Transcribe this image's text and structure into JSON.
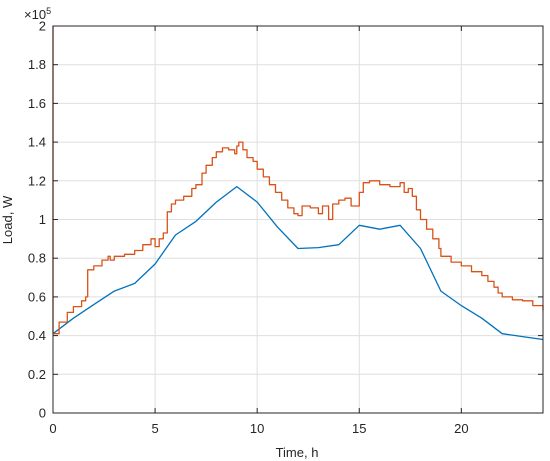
{
  "chart_data": {
    "type": "line",
    "xlabel": "Time, h",
    "ylabel": "Load, W",
    "y_exponent_base": "×10",
    "y_exponent_power": "5",
    "xlim": [
      0,
      24
    ],
    "ylim": [
      0,
      2
    ],
    "x_ticks": [
      0,
      5,
      10,
      15,
      20
    ],
    "x_tick_labels": [
      "0",
      "5",
      "10",
      "15",
      "20"
    ],
    "y_ticks": [
      0,
      0.2,
      0.4,
      0.6,
      0.8,
      1,
      1.2,
      1.4,
      1.6,
      1.8,
      2
    ],
    "y_tick_labels": [
      "0",
      "0.2",
      "0.4",
      "0.6",
      "0.8",
      "1",
      "1.2",
      "1.4",
      "1.6",
      "1.8",
      "2"
    ],
    "grid": true,
    "legend": "none",
    "series": [
      {
        "color": "#0072BD",
        "style": "linear",
        "points": [
          [
            0,
            0.41
          ],
          [
            1,
            0.49
          ],
          [
            2,
            0.56
          ],
          [
            3,
            0.63
          ],
          [
            4,
            0.67
          ],
          [
            5,
            0.77
          ],
          [
            6,
            0.92
          ],
          [
            7,
            0.99
          ],
          [
            8,
            1.09
          ],
          [
            9,
            1.17
          ],
          [
            10,
            1.09
          ],
          [
            11,
            0.96
          ],
          [
            12,
            0.85
          ],
          [
            13,
            0.855
          ],
          [
            14,
            0.87
          ],
          [
            15,
            0.97
          ],
          [
            16,
            0.95
          ],
          [
            17,
            0.97
          ],
          [
            18,
            0.85
          ],
          [
            19,
            0.63
          ],
          [
            20,
            0.555
          ],
          [
            21,
            0.49
          ],
          [
            22,
            0.41
          ],
          [
            23,
            0.395
          ],
          [
            24,
            0.38
          ]
        ]
      },
      {
        "color": "#D95319",
        "style": "step",
        "points": [
          [
            0,
            0.41
          ],
          [
            0.3,
            0.47
          ],
          [
            0.7,
            0.52
          ],
          [
            1,
            0.55
          ],
          [
            1.4,
            0.58
          ],
          [
            1.6,
            0.6
          ],
          [
            1.7,
            0.74
          ],
          [
            2,
            0.76
          ],
          [
            2.4,
            0.79
          ],
          [
            2.7,
            0.81
          ],
          [
            2.8,
            0.79
          ],
          [
            3,
            0.81
          ],
          [
            3.5,
            0.82
          ],
          [
            4,
            0.84
          ],
          [
            4.4,
            0.87
          ],
          [
            4.8,
            0.9
          ],
          [
            5,
            0.86
          ],
          [
            5.2,
            0.9
          ],
          [
            5.4,
            0.93
          ],
          [
            5.6,
            1.04
          ],
          [
            5.8,
            1.08
          ],
          [
            6,
            1.1
          ],
          [
            6.4,
            1.12
          ],
          [
            6.8,
            1.16
          ],
          [
            7,
            1.18
          ],
          [
            7.3,
            1.24
          ],
          [
            7.5,
            1.28
          ],
          [
            7.8,
            1.32
          ],
          [
            8,
            1.35
          ],
          [
            8.3,
            1.37
          ],
          [
            8.6,
            1.36
          ],
          [
            8.9,
            1.34
          ],
          [
            9,
            1.38
          ],
          [
            9.1,
            1.4
          ],
          [
            9.3,
            1.36
          ],
          [
            9.5,
            1.32
          ],
          [
            9.8,
            1.3
          ],
          [
            10,
            1.26
          ],
          [
            10.3,
            1.22
          ],
          [
            10.6,
            1.18
          ],
          [
            10.9,
            1.14
          ],
          [
            11.2,
            1.1
          ],
          [
            11.5,
            1.06
          ],
          [
            11.8,
            1.03
          ],
          [
            12,
            1.02
          ],
          [
            12.2,
            1.07
          ],
          [
            12.6,
            1.06
          ],
          [
            13,
            1.03
          ],
          [
            13.2,
            1.07
          ],
          [
            13.5,
            1.0
          ],
          [
            13.7,
            1.08
          ],
          [
            14,
            1.1
          ],
          [
            14.3,
            1.11
          ],
          [
            14.6,
            1.07
          ],
          [
            15,
            1.14
          ],
          [
            15.2,
            1.19
          ],
          [
            15.5,
            1.2
          ],
          [
            16,
            1.18
          ],
          [
            16.5,
            1.17
          ],
          [
            17,
            1.19
          ],
          [
            17.2,
            1.14
          ],
          [
            17.4,
            1.16
          ],
          [
            17.6,
            1.12
          ],
          [
            17.8,
            1.05
          ],
          [
            18,
            1.0
          ],
          [
            18.3,
            0.95
          ],
          [
            18.6,
            0.9
          ],
          [
            18.9,
            0.85
          ],
          [
            19,
            0.81
          ],
          [
            19.5,
            0.78
          ],
          [
            20,
            0.76
          ],
          [
            20.5,
            0.73
          ],
          [
            21,
            0.71
          ],
          [
            21.3,
            0.68
          ],
          [
            21.6,
            0.65
          ],
          [
            21.8,
            0.62
          ],
          [
            22,
            0.6
          ],
          [
            22.5,
            0.585
          ],
          [
            23,
            0.58
          ],
          [
            23.5,
            0.555
          ],
          [
            24,
            0.53
          ]
        ]
      }
    ]
  }
}
